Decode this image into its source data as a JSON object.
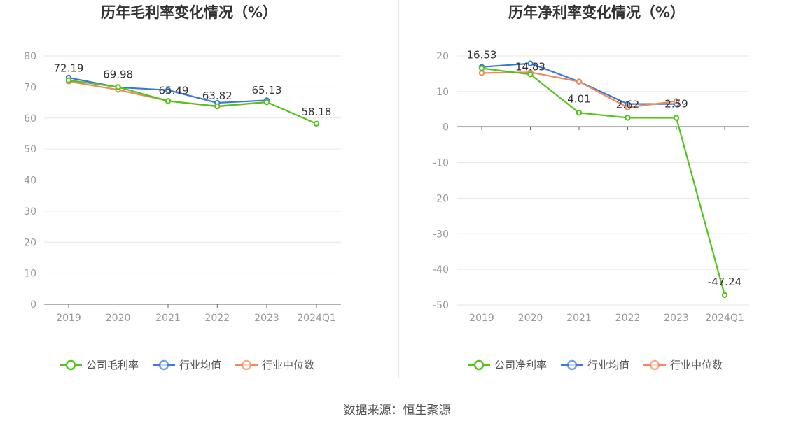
{
  "chart_data": [
    {
      "type": "line",
      "title": "历年毛利率变化情况（%）",
      "categories": [
        "2019",
        "2020",
        "2021",
        "2022",
        "2023",
        "2024Q1"
      ],
      "ylim": [
        0,
        80
      ],
      "yticks": [
        0,
        10,
        20,
        30,
        40,
        50,
        60,
        70,
        80
      ],
      "ytick_labels": [
        "0",
        "10",
        "20",
        "30",
        "40",
        "50",
        "60",
        "70",
        "80"
      ],
      "grid": true,
      "legend_position": "bottom-center",
      "series": [
        {
          "name": "公司毛利率",
          "color": "#52c41a",
          "values": [
            72.19,
            69.98,
            65.49,
            63.82,
            65.13,
            58.18
          ],
          "labels": [
            "72.19",
            "69.98",
            "65.49",
            "63.82",
            "65.13",
            "58.18"
          ]
        },
        {
          "name": "行业均值",
          "color": "#3b78d8",
          "values": [
            73.0,
            69.9,
            69.0,
            64.9,
            65.7,
            null
          ]
        },
        {
          "name": "行业中位数",
          "color": "#f08a5d",
          "values": [
            71.8,
            69.1,
            65.5,
            63.7,
            65.1,
            null
          ]
        }
      ]
    },
    {
      "type": "line",
      "title": "历年净利率变化情况（%）",
      "categories": [
        "2019",
        "2020",
        "2021",
        "2022",
        "2023",
        "2024Q1"
      ],
      "ylim": [
        -50,
        20
      ],
      "yticks": [
        -50,
        -40,
        -30,
        -20,
        -10,
        0,
        10,
        20
      ],
      "ytick_labels": [
        "-50",
        "-40",
        "-30",
        "-20",
        "-10",
        "0",
        "10",
        "20"
      ],
      "grid": true,
      "legend_position": "bottom-center",
      "series": [
        {
          "name": "公司净利率",
          "color": "#52c41a",
          "values": [
            16.53,
            14.83,
            4.01,
            2.62,
            2.59,
            -47.24
          ],
          "labels": [
            "16.53",
            "14.83",
            "4.01",
            "2.62",
            "2.59",
            "-47.24"
          ]
        },
        {
          "name": "行业均值",
          "color": "#3b78d8",
          "values": [
            16.9,
            17.9,
            12.8,
            6.5,
            6.5,
            null
          ]
        },
        {
          "name": "行业中位数",
          "color": "#f08a5d",
          "values": [
            15.2,
            15.4,
            12.8,
            5.5,
            7.3,
            null
          ]
        }
      ]
    }
  ],
  "source": "数据来源：恒生聚源"
}
